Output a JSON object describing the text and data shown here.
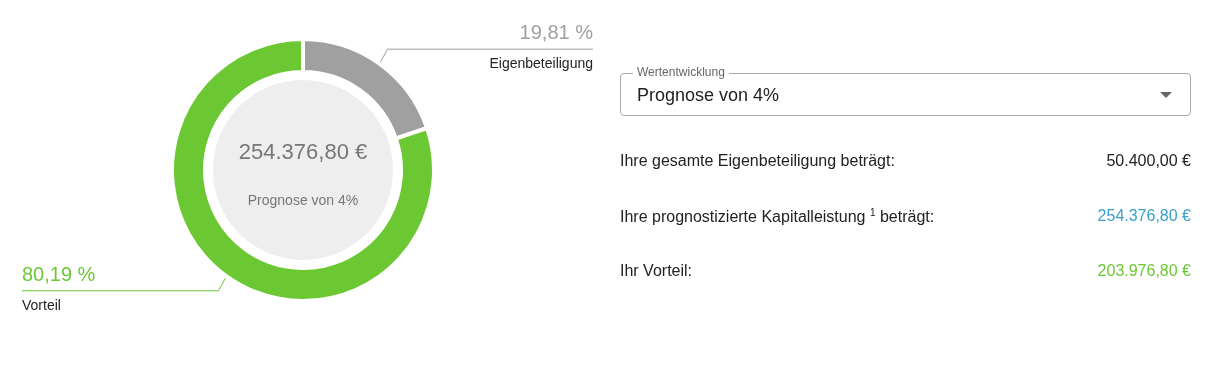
{
  "chart_data": [
    {
      "type": "donut",
      "categories": [
        "Eigenbeteiligung",
        "Vorteil"
      ],
      "values": [
        19.81,
        80.19
      ],
      "colors": [
        "#a0a0a0",
        "#6cc832"
      ],
      "value_labels": [
        "19,81 %",
        "80,19 %"
      ],
      "annotations": [
        "254.376,80 €",
        "Prognose von 4%"
      ]
    },
    {
      "type": "other",
      "annotations": [
        "Wertentwicklung",
        "Prognose von 4%",
        "Ihre gesamte Eigenbeteiligung beträgt:",
        "50.400,00 €",
        "Ihre prognostizierte Kapitalleistung $^{1}$ beträgt:",
        "254.376,80 €",
        "Ihr Vorteil:",
        "203.976,80 €"
      ]
    }
  ]
}
